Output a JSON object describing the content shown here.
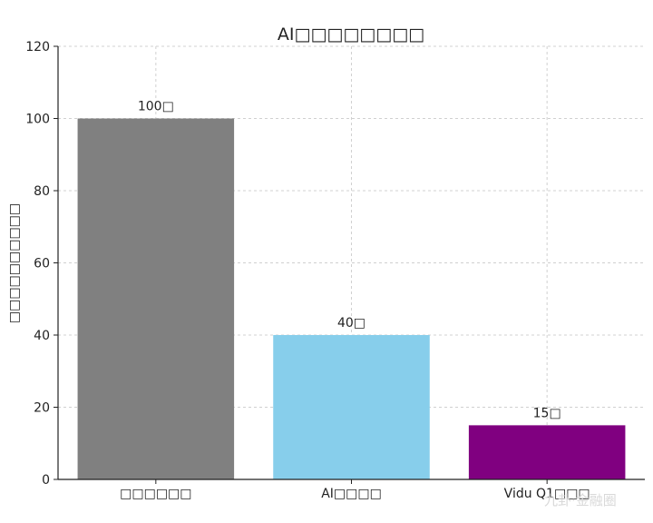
{
  "chart_data": {
    "type": "bar",
    "title": "AI□□□□□□□□",
    "ylabel": "□□□□□□□□□□",
    "xlabel": "",
    "categories": [
      "□□□□□□",
      "AI□□□□",
      "Vidu Q1□□□"
    ],
    "values": [
      100,
      40,
      15
    ],
    "value_labels": [
      "100□",
      "40□",
      "15□"
    ],
    "colors": [
      "#808080",
      "#87ceeb",
      "#800080"
    ],
    "ylim": [
      0,
      120
    ],
    "yticks": [
      0,
      20,
      40,
      60,
      80,
      100,
      120
    ],
    "grid": true
  },
  "watermark": "九卦·金融圈"
}
